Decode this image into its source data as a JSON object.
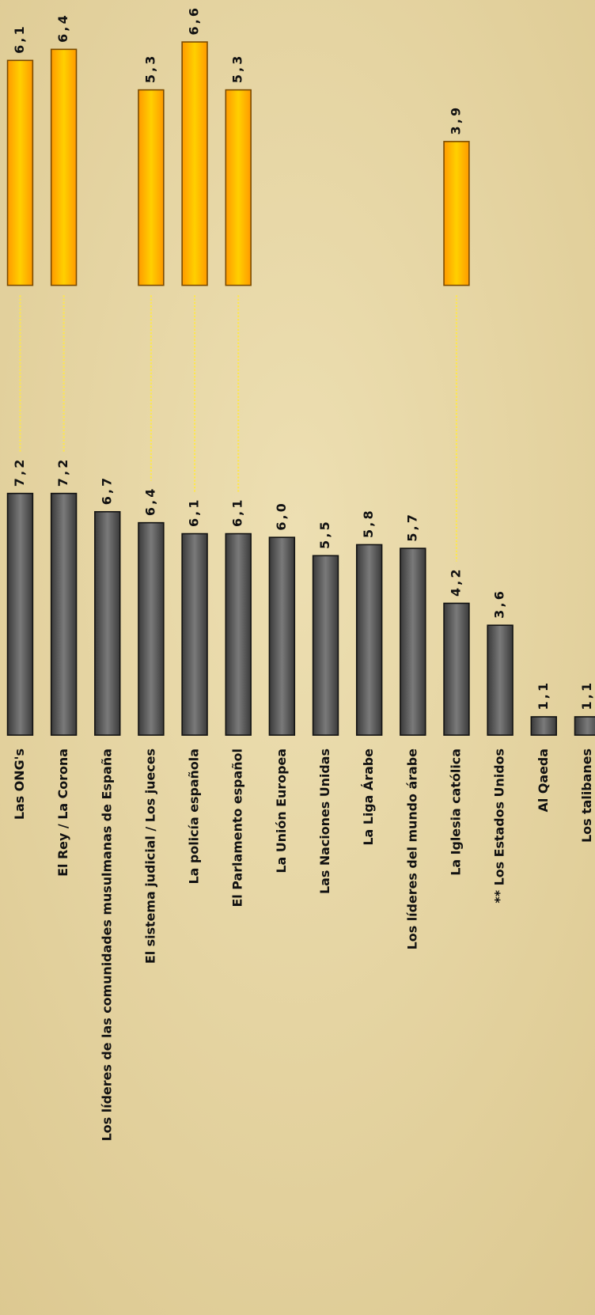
{
  "chart_data": {
    "type": "bar",
    "categories": [
      "Las ONG's",
      "El Rey / La Corona",
      "Los líderes de las comunidades musulmanas de España",
      "El sistema judicial / Los jueces",
      "La policía española",
      "El Parlamento español",
      "La Unión Europea",
      "Las Naciones Unidas",
      "La Liga Árabe",
      "Los líderes del mundo árabe",
      "La Iglesia católica",
      "** Los Estados Unidos",
      "Al Qaeda",
      "Los talibanes"
    ],
    "series": [
      {
        "color": "#5e5e5e",
        "ylim": [
          0.6,
          7.2
        ],
        "values": [
          7.2,
          7.2,
          6.7,
          6.4,
          6.1,
          6.1,
          6.0,
          5.5,
          5.8,
          5.7,
          4.2,
          3.6,
          1.1,
          1.1
        ],
        "value_labels": [
          "7,2",
          "7,2",
          "6,7",
          "6,4",
          "6,1",
          "6,1",
          "6,0",
          "5,5",
          "5,8",
          "5,7",
          "4,2",
          "3,6",
          "1,1",
          "1,1"
        ]
      },
      {
        "color": "#ffb000",
        "ylim": [
          0,
          6.6
        ],
        "values": [
          6.1,
          6.4,
          null,
          5.3,
          6.6,
          5.3,
          null,
          null,
          null,
          null,
          3.9,
          null,
          null,
          null
        ],
        "value_labels": [
          "6,1",
          "6,4",
          null,
          "5,3",
          "6,6",
          "5,3",
          null,
          null,
          null,
          null,
          "3,9",
          null,
          null,
          null
        ]
      }
    ]
  }
}
